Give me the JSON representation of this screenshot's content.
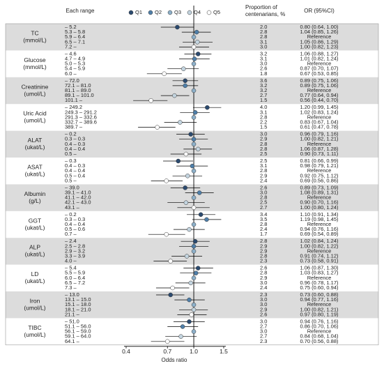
{
  "chart_data": {
    "type": "forest",
    "headers": {
      "range": "Each range",
      "proportion_1": "Proportion of",
      "proportion_2": "centenarians, %",
      "or": "OR (95%CI)"
    },
    "x_label": "Odds ratio",
    "xscale": "log",
    "xlim": [
      0.4,
      1.5
    ],
    "xticks": [
      0.4,
      0.7,
      {
        "value": 1,
        "label": "1.0"
      },
      1.5
    ],
    "series": [
      {
        "name": "Q1",
        "color": "#2b4a6f"
      },
      {
        "name": "Q2",
        "color": "#4f7fa9"
      },
      {
        "name": "Q3",
        "color": "#8db0c9"
      },
      {
        "name": "Q4",
        "color": "#c3d4df"
      },
      {
        "name": "Q5",
        "color": "#ffffff"
      }
    ],
    "groups": [
      {
        "name": "TC",
        "unit": "(mmol/L)",
        "ranges": [
          "– 5.2",
          "5.3 – 5.8",
          "5.9 – 6.4",
          "6.5 – 7.1",
          "7.2 –"
        ],
        "proportions": [
          "2.0",
          "2.8",
          "2.8",
          "3.1",
          "3.0"
        ],
        "values": [
          0.8,
          1.04,
          1,
          1.05,
          1.0
        ],
        "ci_low": [
          0.64,
          0.85,
          null,
          0.86,
          0.82
        ],
        "ci_high": [
          1.0,
          1.26,
          null,
          1.29,
          1.23
        ],
        "value_labels": [
          "0.80 (0.64, 1.00)",
          "1.04 (0.85, 1.26)",
          "Reference",
          "1.05 (0.86, 1.29)",
          "1.00 (0.82, 1.23)"
        ]
      },
      {
        "name": "Glucose",
        "unit": "(mmol/L)",
        "ranges": [
          "– 4.6",
          "4.7 – 4.9",
          "5.0 – 5.3",
          "5.4 – 5.9",
          "6.0 –"
        ],
        "proportions": [
          "3.2",
          "3.1",
          "3.0",
          "2.6",
          "1.8"
        ],
        "values": [
          1.06,
          1.01,
          1,
          0.87,
          0.67
        ],
        "ci_low": [
          0.88,
          0.82,
          null,
          0.7,
          0.53
        ],
        "ci_high": [
          1.27,
          1.24,
          null,
          1.07,
          0.85
        ],
        "value_labels": [
          "1.06 (0.88, 1.27)",
          "1.01 (0.82, 1.24)",
          "Reference",
          "0.87 (0.70, 1.07)",
          "0.67 (0.53, 0.85)"
        ]
      },
      {
        "name": "Creatinine",
        "unit": "(umol/L)",
        "ranges": [
          "– 72.0",
          "72.1 – 81.0",
          "81.1 – 89.0",
          "89.1 – 101.0",
          "101.1 –"
        ],
        "proportions": [
          "3.6",
          "3.2",
          "3.2",
          "2.7",
          "1.5"
        ],
        "values": [
          0.89,
          0.89,
          1,
          0.77,
          0.56
        ],
        "ci_low": [
          0.75,
          0.75,
          null,
          0.64,
          0.44
        ],
        "ci_high": [
          1.06,
          1.06,
          null,
          0.94,
          0.7
        ],
        "value_labels": [
          "0.89 (0.75, 1.06)",
          "0.89 (0.75, 1.06)",
          "Reference",
          "0.77 (0.64, 0.94)",
          "0.56 (0.44, 0.70)"
        ]
      },
      {
        "name": "Uric Acid",
        "unit": "(umol/L)",
        "ranges": [
          "– 249.2",
          "249.3 – 291.2",
          "291.3 – 332.6",
          "332.7 – 389.6",
          "389.7 –"
        ],
        "proportions": [
          "4.0",
          "3.1",
          "2.8",
          "2.2",
          "1.5"
        ],
        "values": [
          1.2,
          1.02,
          1,
          0.83,
          0.61
        ],
        "ci_low": [
          0.99,
          0.83,
          null,
          0.67,
          0.47
        ],
        "ci_high": [
          1.45,
          1.24,
          null,
          1.04,
          0.78
        ],
        "value_labels": [
          "1.20 (0.99, 1.45)",
          "1.02 (0.83, 1.24)",
          "Reference",
          "0.83 (0.67, 1.04)",
          "0.61 (0.47, 0.78)"
        ]
      },
      {
        "name": "ALAT",
        "unit": "(ukat/L)",
        "ranges": [
          "– 0.2",
          "0.3 – 0.3",
          "0.4 – 0.3",
          "0.4 – 0.4",
          "0.5 –"
        ],
        "proportions": [
          "3.0",
          "2.9",
          "2.8",
          "2.8",
          "2.5"
        ],
        "values": [
          0.96,
          1.0,
          1,
          1.06,
          0.9
        ],
        "ci_low": [
          0.79,
          0.82,
          null,
          0.87,
          0.73
        ],
        "ci_high": [
          1.16,
          1.21,
          null,
          1.28,
          1.11
        ],
        "value_labels": [
          "0.96 (0.79, 1.16)",
          "1.00 (0.82, 1.21)",
          "Reference",
          "1.06 (0.87, 1.28)",
          "0.90 (0.73, 1.11)"
        ]
      },
      {
        "name": "ASAT",
        "unit": "(ukat/L)",
        "ranges": [
          "– 0.3",
          "0.4 – 0.3",
          "0.4 – 0.4",
          "0.5 – 0.4",
          "0.5 –"
        ],
        "proportions": [
          "2.5",
          "3.1",
          "2.8",
          "2.9",
          "2.4"
        ],
        "values": [
          0.81,
          0.98,
          1,
          0.92,
          0.69
        ],
        "ci_low": [
          0.66,
          0.79,
          null,
          0.75,
          0.56
        ],
        "ci_high": [
          0.99,
          1.21,
          null,
          1.12,
          0.86
        ],
        "value_labels": [
          "0.81 (0.66, 0.99)",
          "0.98 (0.79, 1.21)",
          "Reference",
          "0.92 (0.75, 1.12)",
          "0.69 (0.56, 0.86)"
        ]
      },
      {
        "name": "Albumin",
        "unit": "(g/L)",
        "ranges": [
          "– 39.0",
          "39.1 – 41.0",
          "41.1 – 42.0",
          "42.1 – 43.0",
          "43.1 –"
        ],
        "proportions": [
          "2.6",
          "3.0",
          "2.8",
          "2.5",
          "2.7"
        ],
        "values": [
          0.89,
          1.08,
          1,
          0.9,
          1.0
        ],
        "ci_low": [
          0.73,
          0.89,
          null,
          0.7,
          0.8
        ],
        "ci_high": [
          1.09,
          1.31,
          null,
          1.16,
          1.24
        ],
        "value_labels": [
          "0.89 (0.73, 1.09)",
          "1.08 (0.89, 1.31)",
          "Reference",
          "0.90 (0.70, 1.16)",
          "1.00 (0.80, 1.24)"
        ]
      },
      {
        "name": "GGT",
        "unit": "(ukat/L)",
        "ranges": [
          "– 0.2",
          "0.3 – 0.3",
          "0.4 – 0.4",
          "0.5 – 0.6",
          "0.7 –"
        ],
        "proportions": [
          "3.4",
          "3.5",
          "2.8",
          "2.4",
          "1.7"
        ],
        "values": [
          1.1,
          1.19,
          1,
          0.94,
          0.69
        ],
        "ci_low": [
          0.91,
          0.98,
          null,
          0.76,
          0.54
        ],
        "ci_high": [
          1.34,
          1.45,
          null,
          1.16,
          0.89
        ],
        "value_labels": [
          "1.10 (0.91, 1.34)",
          "1.19 (0.98, 1.45)",
          "Reference",
          "0.94 (0.76, 1.16)",
          "0.69 (0.54, 0.89)"
        ]
      },
      {
        "name": "ALP",
        "unit": "(ukat/L)",
        "ranges": [
          "– 2.4",
          "2.5 – 2.8",
          "2.9 – 3.2",
          "3.3 – 3.9",
          "4.0 –"
        ],
        "proportions": [
          "2.8",
          "2.9",
          "2.9",
          "2.8",
          "2.3"
        ],
        "values": [
          1.02,
          1.0,
          1,
          0.91,
          0.73
        ],
        "ci_low": [
          0.84,
          0.82,
          null,
          0.74,
          0.58
        ],
        "ci_high": [
          1.24,
          1.22,
          null,
          1.12,
          0.91
        ],
        "value_labels": [
          "1.02 (0.84, 1.24)",
          "1.00 (0.82, 1.22)",
          "Reference",
          "0.91 (0.74, 1.12)",
          "0.73 (0.58, 0.91)"
        ]
      },
      {
        "name": "LD",
        "unit": "(ukat/L)",
        "ranges": [
          "– 5.4",
          "5.5 – 5.9",
          "6.0 – 6.4",
          "6.5 – 7.2",
          "7.3 –"
        ],
        "proportions": [
          "2.6",
          "2.8",
          "2.9",
          "3.0",
          "2.4"
        ],
        "values": [
          1.06,
          1.03,
          1,
          0.96,
          0.75
        ],
        "ci_low": [
          0.87,
          0.83,
          null,
          0.78,
          0.6
        ],
        "ci_high": [
          1.3,
          1.27,
          null,
          1.17,
          0.94
        ],
        "value_labels": [
          "1.06 (0.87, 1.30)",
          "1.03 (0.83, 1.27)",
          "Reference",
          "0.96 (0.78, 1.17)",
          "0.75 (0.60, 0.94)"
        ]
      },
      {
        "name": "Iron",
        "unit": "(umol/L)",
        "ranges": [
          "– 13.0",
          "13.1 – 15.0",
          "15.1 – 18.0",
          "18.1 – 21.0",
          "21.1 –"
        ],
        "proportions": [
          "2.3",
          "3.0",
          "3.0",
          "2.9",
          "2.6"
        ],
        "values": [
          0.73,
          0.94,
          1,
          1.0,
          0.97
        ],
        "ci_low": [
          0.6,
          0.77,
          null,
          0.82,
          0.8
        ],
        "ci_high": [
          0.88,
          1.16,
          null,
          1.21,
          1.19
        ],
        "value_labels": [
          "0.73 (0.60, 0.88)",
          "0.94 (0.77, 1.16)",
          "Reference",
          "1.00 (0.82, 1.21)",
          "0.97 (0.80, 1.19)"
        ]
      },
      {
        "name": "TIBC",
        "unit": "(umol/L)",
        "ranges": [
          "– 51.0",
          "51.1 – 56.0",
          "56.1 – 59.0",
          "59.1 – 64.0",
          "64.1 –"
        ],
        "proportions": [
          "3.0",
          "2.7",
          "3.0",
          "2.7",
          "2.3"
        ],
        "values": [
          0.94,
          0.86,
          1,
          0.84,
          0.7
        ],
        "ci_low": [
          0.76,
          0.7,
          null,
          0.68,
          0.56
        ],
        "ci_high": [
          1.16,
          1.06,
          null,
          1.04,
          0.88
        ],
        "value_labels": [
          "0.94 (0.76, 1.16)",
          "0.86 (0.70, 1.06)",
          "Reference",
          "0.84 (0.68, 1.04)",
          "0.70 (0.56, 0.88)"
        ]
      }
    ]
  }
}
